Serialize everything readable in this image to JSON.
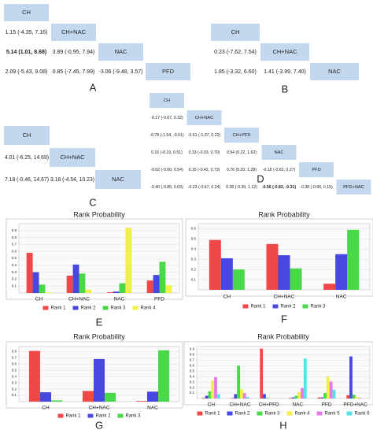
{
  "tables": [
    {
      "panel": "A",
      "headers": [
        "CH",
        "CH+NAC",
        "NAC",
        "PFD"
      ],
      "comparisons": [
        [
          "1.15 (-4.35, 7.16)"
        ],
        [
          "5.14 (1.01, 8.68)",
          "3.89 (-0.95, 7.94)"
        ],
        [
          "2.09 (-5.43, 9.08)",
          "0.85 (-7.45, 7.99)",
          "-3.06 (-9.48, 3.57)"
        ]
      ],
      "bold": [
        [
          1,
          0
        ]
      ]
    },
    {
      "panel": "B",
      "headers": [
        "CH",
        "CH+NAC",
        "NAC"
      ],
      "comparisons": [
        [
          "0.23 (-7.62, 7.54)"
        ],
        [
          "1.85 (-3.32, 6.60)",
          "1.41 (-3.99, 7.40)"
        ]
      ],
      "bold": []
    },
    {
      "panel": "C",
      "headers": [
        "CH",
        "CH+NAC",
        "NAC"
      ],
      "comparisons": [
        [
          "4.01 (-6.25, 14.69)"
        ],
        [
          "7.18 (-0.46, 14.67)",
          "3.18 (-4.54, 10.23)"
        ]
      ],
      "bold": []
    },
    {
      "panel": "D",
      "headers": [
        "CH",
        "CH+NAC",
        "CH+PFD",
        "NAC",
        "PFD",
        "PFD+NAC"
      ],
      "comparisons": [
        [
          "-0.17 (-0.67, 0.32)"
        ],
        [
          "-0.78 (-1.54, -0.01)",
          "-0.61 (-1.37, 0.22)"
        ],
        [
          "0.16 (-0.19, 0.51)",
          "0.33 (-0.03, 0.70)",
          "0.94 (0.22, 1.62)"
        ],
        [
          "-0.02 (-0.60, 0.54)",
          "0.15 (-0.42, 0.73)",
          "0.76 (0.20, 1.28)",
          "-0.18 (-0.63, 0.27)"
        ],
        [
          "-0.40 (-0.85, 0.03)",
          "-0.23 (-0.67, 0.24)",
          "0.38 (-0.39, 1.12)",
          "-0.56 (-0.83, -0.31)",
          "-0.38 (-0.90, 0.15)"
        ]
      ],
      "bold": [
        [
          4,
          3
        ]
      ]
    }
  ],
  "chart_data": [
    {
      "type": "bar",
      "panel": "E",
      "title": "Rank Probability",
      "categories": [
        "CH",
        "CH+NAC",
        "NAC",
        "PFD"
      ],
      "series": [
        {
          "name": "Rank 1",
          "color": "#f04848",
          "values": [
            0.58,
            0.25,
            0.01,
            0.18
          ]
        },
        {
          "name": "Rank 2",
          "color": "#4848e0",
          "values": [
            0.3,
            0.41,
            0.02,
            0.26
          ]
        },
        {
          "name": "Rank 3",
          "color": "#48d848",
          "values": [
            0.12,
            0.28,
            0.14,
            0.45
          ]
        },
        {
          "name": "Rank 4",
          "color": "#f0f048",
          "values": [
            0.01,
            0.05,
            0.94,
            0.11
          ]
        }
      ],
      "ylim": [
        0,
        1
      ],
      "yticks": [
        0.1,
        0.2,
        0.3,
        0.4,
        0.5,
        0.6,
        0.7,
        0.8,
        0.9
      ],
      "grid": true
    },
    {
      "type": "bar",
      "panel": "F",
      "title": "Rank Probability",
      "categories": [
        "CH",
        "CH+NAC",
        "NAC"
      ],
      "series": [
        {
          "name": "Rank 1",
          "color": "#f04848",
          "values": [
            0.49,
            0.45,
            0.06
          ]
        },
        {
          "name": "Rank 2",
          "color": "#4848e0",
          "values": [
            0.31,
            0.34,
            0.35
          ]
        },
        {
          "name": "Rank 3",
          "color": "#48d848",
          "values": [
            0.2,
            0.21,
            0.59
          ]
        }
      ],
      "ylim": [
        0,
        0.65
      ],
      "yticks": [
        0.1,
        0.2,
        0.3,
        0.4,
        0.5,
        0.6
      ],
      "grid": true
    },
    {
      "type": "bar",
      "panel": "G",
      "title": "Rank Probability",
      "categories": [
        "CH",
        "CH+NAC",
        "NAC"
      ],
      "series": [
        {
          "name": "Rank 1",
          "color": "#f04848",
          "values": [
            0.81,
            0.17,
            0.01
          ]
        },
        {
          "name": "Rank 2",
          "color": "#4848e0",
          "values": [
            0.15,
            0.68,
            0.16
          ]
        },
        {
          "name": "Rank 3",
          "color": "#48d848",
          "values": [
            0.02,
            0.14,
            0.82
          ]
        }
      ],
      "ylim": [
        0,
        0.88
      ],
      "yticks": [
        0.1,
        0.2,
        0.3,
        0.4,
        0.5,
        0.6,
        0.7,
        0.8
      ],
      "grid": true
    },
    {
      "type": "bar",
      "panel": "H",
      "title": "Rank Probability",
      "categories": [
        "CH",
        "CH+NAC",
        "CH+PFD",
        "NAC",
        "PFD",
        "PFD+NAC"
      ],
      "series": [
        {
          "name": "Rank 1",
          "color": "#f04848",
          "values": [
            0.01,
            0.01,
            0.91,
            0.01,
            0.02,
            0.06
          ]
        },
        {
          "name": "Rank 2",
          "color": "#4848e0",
          "values": [
            0.05,
            0.08,
            0.08,
            0.02,
            0.02,
            0.77
          ]
        },
        {
          "name": "Rank 3",
          "color": "#48d848",
          "values": [
            0.13,
            0.6,
            0.01,
            0.05,
            0.1,
            0.07
          ]
        },
        {
          "name": "Rank 4",
          "color": "#f0f048",
          "values": [
            0.33,
            0.17,
            0,
            0.12,
            0.4,
            0.03
          ]
        },
        {
          "name": "Rank 5",
          "color": "#e878e8",
          "values": [
            0.39,
            0.1,
            0,
            0.19,
            0.31,
            0.01
          ]
        },
        {
          "name": "Rank 6",
          "color": "#58e0e8",
          "values": [
            0.08,
            0.03,
            0,
            0.73,
            0.16,
            0
          ]
        }
      ],
      "ylim": [
        0,
        0.95
      ],
      "yticks": [
        0.1,
        0.2,
        0.3,
        0.4,
        0.5,
        0.6,
        0.7,
        0.8,
        0.9
      ],
      "grid": true
    }
  ]
}
